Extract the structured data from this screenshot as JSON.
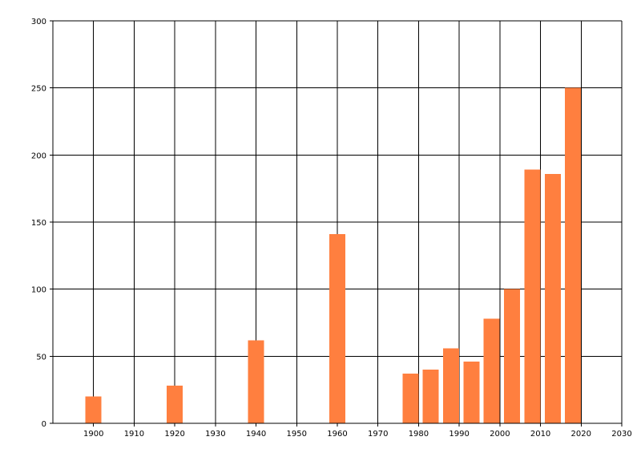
{
  "chart_data": {
    "type": "bar",
    "title": "",
    "xlabel": "",
    "ylabel": "",
    "x": [
      1900,
      1920,
      1940,
      1960,
      1978,
      1983,
      1988,
      1993,
      1998,
      2003,
      2008,
      2013,
      2018
    ],
    "values": [
      20,
      28,
      62,
      141,
      37,
      40,
      56,
      46,
      78,
      100,
      189,
      186,
      250
    ],
    "xlim": [
      1890,
      2030
    ],
    "ylim": [
      0,
      300
    ],
    "x_ticks": [
      1900,
      1910,
      1920,
      1930,
      1940,
      1950,
      1960,
      1970,
      1980,
      1990,
      2000,
      2010,
      2020,
      2030
    ],
    "y_ticks": [
      0,
      50,
      100,
      150,
      200,
      250,
      300
    ],
    "bar_color": "#ff7f3f",
    "grid": true,
    "legend": "none"
  }
}
